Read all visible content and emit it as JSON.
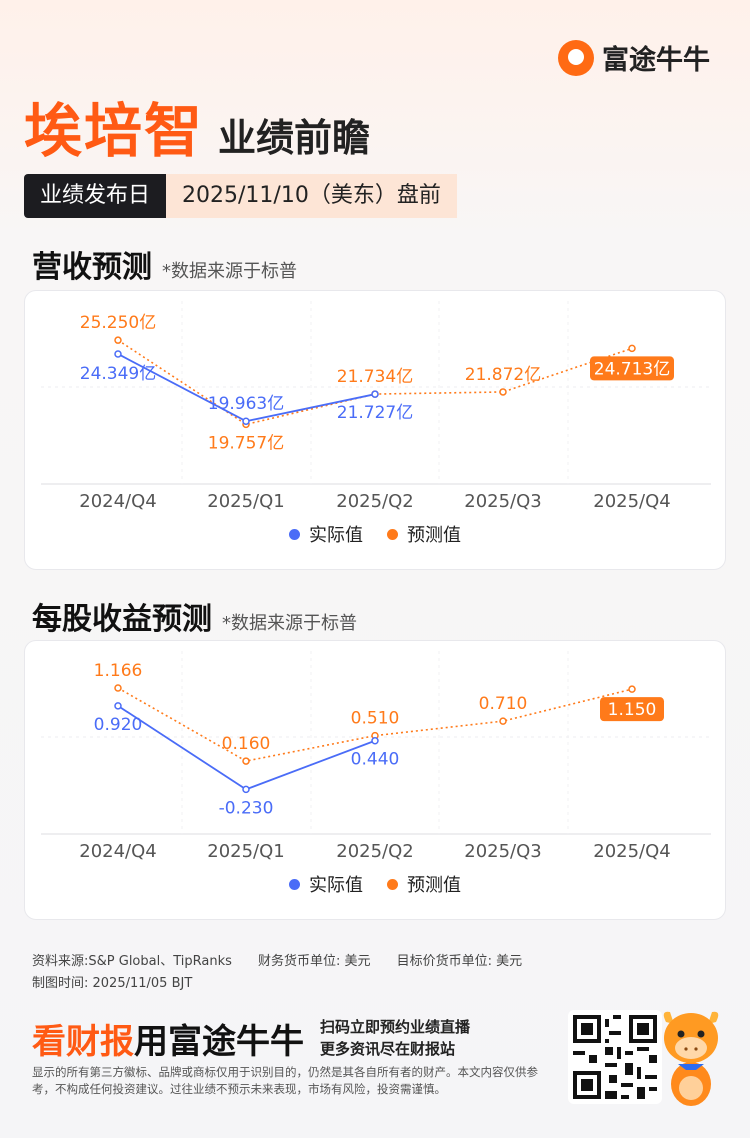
{
  "brand": {
    "name": "富途牛牛",
    "logo_icon": "futu-logo-icon",
    "accent": "#ff5a14"
  },
  "header": {
    "company": "埃培智",
    "subtitle": "业绩前瞻"
  },
  "release": {
    "label": "业绩发布日",
    "value": "2025/11/10（美东）盘前"
  },
  "sections": [
    {
      "title": "营收预测",
      "source": "*数据来源于标普"
    },
    {
      "title": "每股收益预测",
      "source": "*数据来源于标普"
    }
  ],
  "legend": {
    "actual": "实际值",
    "forecast": "预测值",
    "actual_color": "#4a6cf7",
    "forecast_color": "#ff7a1a"
  },
  "chart_data": [
    {
      "type": "line",
      "categories": [
        "2024/Q4",
        "2025/Q1",
        "2025/Q2",
        "2025/Q3",
        "2025/Q4"
      ],
      "series": [
        {
          "name": "实际值",
          "values": [
            24.349,
            19.963,
            21.727,
            null,
            null
          ],
          "labels": [
            "24.349亿",
            "19.963亿",
            "21.727亿",
            "",
            ""
          ]
        },
        {
          "name": "预测值",
          "values": [
            25.25,
            19.757,
            21.734,
            21.872,
            24.713
          ],
          "labels": [
            "25.250亿",
            "19.757亿",
            "21.734亿",
            "21.872亿",
            "24.713亿"
          ]
        }
      ],
      "highlight": {
        "series": 1,
        "index": 4
      },
      "ylim": [
        17.5,
        26.5
      ]
    },
    {
      "type": "line",
      "categories": [
        "2024/Q4",
        "2025/Q1",
        "2025/Q2",
        "2025/Q3",
        "2025/Q4"
      ],
      "series": [
        {
          "name": "实际值",
          "values": [
            0.92,
            -0.23,
            0.44,
            null,
            null
          ],
          "labels": [
            "0.920",
            "-0.230",
            "0.440",
            "",
            ""
          ]
        },
        {
          "name": "预测值",
          "values": [
            1.166,
            0.16,
            0.51,
            0.71,
            1.15
          ],
          "labels": [
            "1.166",
            "0.160",
            "0.510",
            "0.710",
            "1.150"
          ]
        }
      ],
      "highlight": {
        "series": 1,
        "index": 4
      },
      "ylim": [
        -0.5,
        1.4
      ]
    }
  ],
  "footer": {
    "source": "资料来源:S&P Global、TipRanks",
    "currency": "财务货币单位: 美元",
    "target_currency": "目标价货币单位: 美元",
    "made_time": "制图时间: 2025/11/05 BJT"
  },
  "banner": {
    "part1": "看财报",
    "part2": "用富途牛牛",
    "cta_line1": "扫码立即预约业绩直播",
    "cta_line2": "更多资讯尽在财报站",
    "disclaimer": "显示的所有第三方徽标、品牌或商标仅用于识别目的，仍然是其各自所有者的财产。本文内容仅供参考，不构成任何投资建议。过往业绩不预示未来表现，市场有风险，投资需谨慎。"
  }
}
